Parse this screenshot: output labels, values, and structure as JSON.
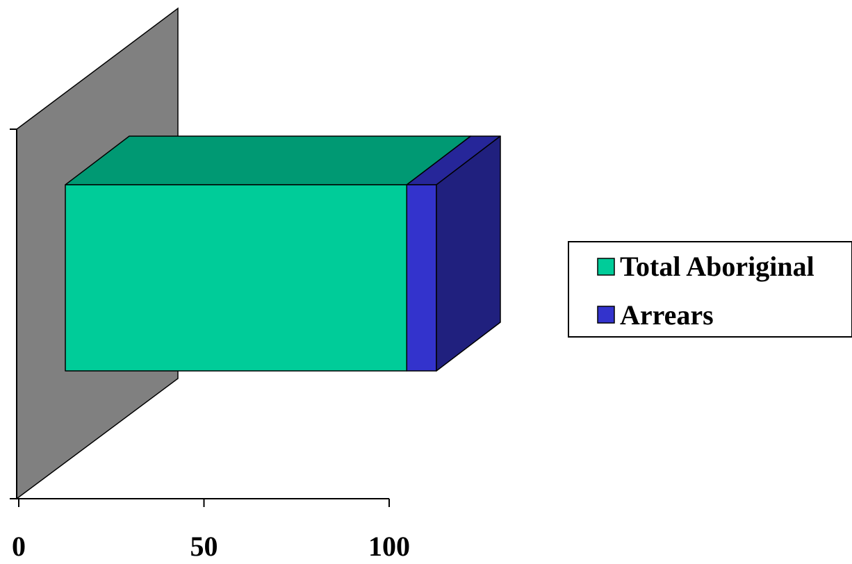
{
  "chart_data": {
    "type": "bar",
    "orientation": "horizontal",
    "stacked": true,
    "three_d": true,
    "categories": [
      ""
    ],
    "series": [
      {
        "name": "Total Aboriginal",
        "values": [
          92
        ],
        "color": "#00CC99"
      },
      {
        "name": "Arrears",
        "values": [
          8
        ],
        "color": "#3333CC"
      }
    ],
    "xlim": [
      0,
      100
    ],
    "x_ticks": [
      "0",
      "50",
      "100"
    ],
    "legend_position": "right",
    "wall_color": "#808080",
    "grid": false
  }
}
